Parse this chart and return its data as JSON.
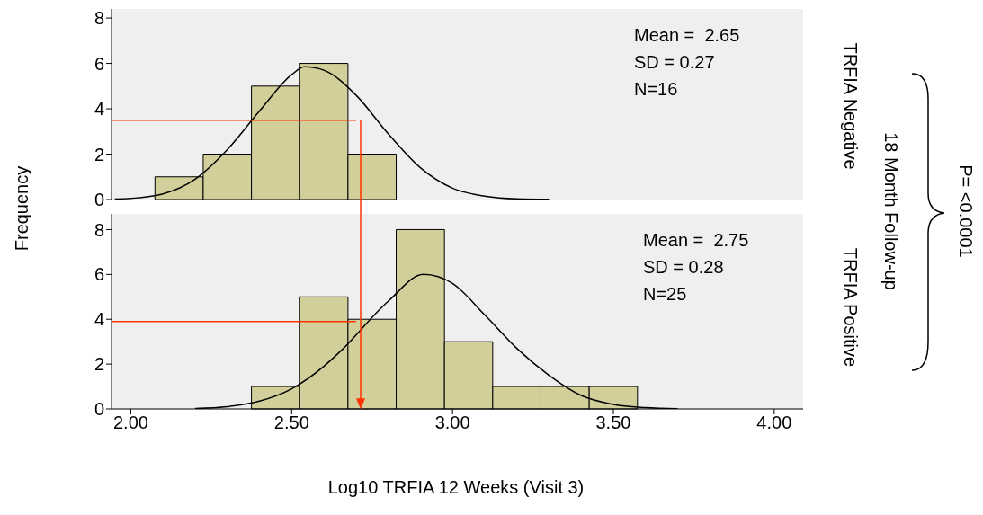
{
  "chart_data": [
    {
      "type": "histogram",
      "xlim": [
        1.94,
        4.09
      ],
      "ylim": [
        0,
        8.4
      ],
      "yticks": [
        0,
        2,
        4,
        6,
        8
      ],
      "tick_labels": "y",
      "marker": "none",
      "y2label": "TRFIA Negative",
      "annotations": [
        "Mean =  2.65",
        "SD = 0.27",
        "N=16"
      ],
      "series": [
        {
          "type": "histogram",
          "color": "#d2cf9b",
          "bins": [
            2.075,
            2.225,
            2.375,
            2.525,
            2.675,
            2.825
          ],
          "values": [
            1,
            2,
            5,
            6,
            2
          ]
        },
        {
          "type": "line",
          "color": "#000000",
          "x": [
            1.95,
            2.0,
            2.1,
            2.2,
            2.3,
            2.4,
            2.5,
            2.54,
            2.6,
            2.7,
            2.8,
            2.9,
            3.0,
            3.1,
            3.2,
            3.3
          ],
          "values": [
            0.02,
            0.05,
            0.25,
            0.9,
            2.2,
            3.9,
            5.5,
            5.85,
            5.7,
            4.6,
            2.9,
            1.4,
            0.5,
            0.15,
            0.03,
            0.01
          ]
        },
        {
          "type": "line",
          "color": "#ff3300",
          "x": [
            1.94,
            2.7
          ],
          "values": [
            3.5,
            3.5
          ]
        }
      ]
    },
    {
      "type": "histogram",
      "xlim": [
        1.94,
        4.09
      ],
      "xticks": [
        {
          "value": 2,
          "label": "2.00"
        },
        {
          "value": 2.5,
          "label": "2.50"
        },
        {
          "value": 3,
          "label": "3.00"
        },
        {
          "value": 3.5,
          "label": "3.50"
        },
        {
          "value": 4,
          "label": "4.00"
        }
      ],
      "ylim": [
        0,
        8.7
      ],
      "yticks": [
        0,
        2,
        4,
        6,
        8
      ],
      "marker": "none",
      "xlabel": "Log10 TRFIA 12 Weeks (Visit 3)",
      "ylabel": "Frequency",
      "y2label": "TRFIA Positive",
      "annotations": [
        "Mean =  2.75",
        "SD = 0.28",
        "N=25",
        "18 Month Follow-up",
        "P= <0.0001"
      ],
      "series": [
        {
          "type": "histogram",
          "color": "#d2cf9b",
          "bins": [
            2.375,
            2.525,
            2.675,
            2.825,
            2.975,
            3.125,
            3.275,
            3.425,
            3.575
          ],
          "values": [
            1,
            5,
            4,
            8,
            3,
            1,
            1,
            1
          ]
        },
        {
          "type": "line",
          "color": "#000000",
          "x": [
            2.2,
            2.3,
            2.4,
            2.5,
            2.6,
            2.65,
            2.8,
            2.91,
            3.0,
            3.1,
            3.2,
            3.3,
            3.4,
            3.5,
            3.6,
            3.7
          ],
          "values": [
            0.02,
            0.1,
            0.35,
            0.9,
            1.9,
            2.55,
            4.8,
            6.0,
            5.6,
            4.2,
            2.7,
            1.5,
            0.6,
            0.2,
            0.06,
            0.01
          ]
        },
        {
          "type": "line",
          "color": "#ff3300",
          "x": [
            1.94,
            2.7
          ],
          "values": [
            3.9,
            3.9
          ]
        }
      ]
    }
  ]
}
